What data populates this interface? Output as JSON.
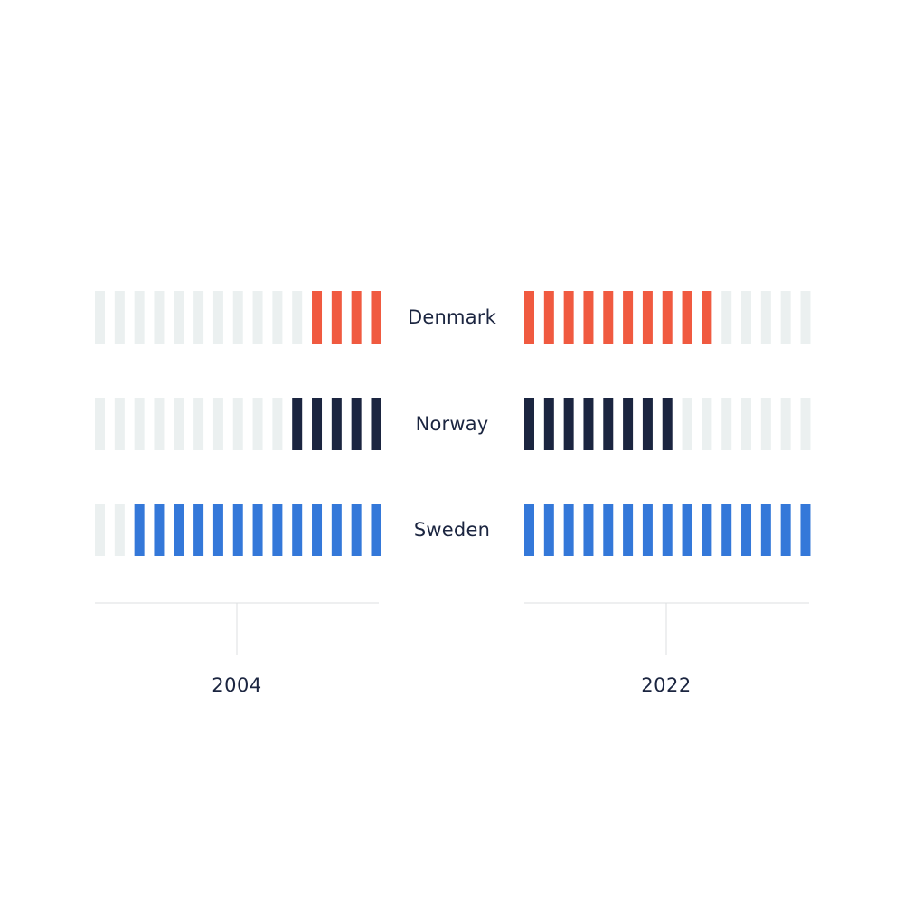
{
  "chart_data": {
    "type": "bar",
    "categories": [
      "2004",
      "2022"
    ],
    "max_units": 15,
    "empty_color": "#ebf0f0",
    "series": [
      {
        "name": "Denmark",
        "color": "#f05a40",
        "values": [
          4,
          10
        ]
      },
      {
        "name": "Norway",
        "color": "#1b2540",
        "values": [
          5,
          8
        ]
      },
      {
        "name": "Sweden",
        "color": "#3478d9",
        "values": [
          13,
          15
        ]
      }
    ]
  }
}
